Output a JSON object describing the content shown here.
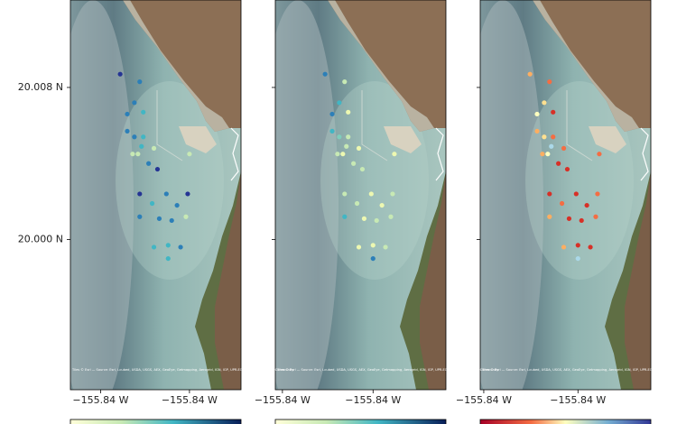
{
  "chart_data": [
    {
      "type": "scatter",
      "attribution": "Tiles © Esri — Source: Esri, i-cubed, USDA, USGS, AEX, GeoEye, Getmapping, Aerogrid, IGN, IGP, UPR-EGP, and the GIS User Community",
      "xlim": [
        -155.8467,
        -155.8371
      ],
      "ylim": [
        19.9921,
        20.0126
      ],
      "xticks": [
        {
          "value": -155.845,
          "label": "−155.84 W"
        },
        {
          "value": -155.84,
          "label": "−155.84 W"
        }
      ],
      "yticks": [
        {
          "value": 20.008,
          "label": "20.008 N"
        },
        {
          "value": 20.0,
          "label": "20.000 N"
        }
      ],
      "x": [
        -155.8439,
        -155.8428,
        -155.8431,
        -155.8435,
        -155.8426,
        -155.8435,
        -155.8431,
        -155.8426,
        -155.8427,
        -155.842,
        -155.8432,
        -155.8429,
        -155.8423,
        -155.8418,
        -155.84,
        -155.8428,
        -155.8413,
        -155.8401,
        -155.8421,
        -155.8407,
        -155.8428,
        -155.8417,
        -155.8402,
        -155.841,
        -155.842,
        -155.8412,
        -155.8405,
        -155.8412
      ],
      "y": [
        20.0087,
        20.0083,
        20.0072,
        20.0066,
        20.0067,
        20.0057,
        20.0054,
        20.0054,
        20.0049,
        20.0048,
        20.0045,
        20.0045,
        20.004,
        20.0037,
        20.0045,
        20.0024,
        20.0024,
        20.0024,
        20.0019,
        20.0018,
        20.0012,
        20.0011,
        20.0012,
        20.001,
        19.9996,
        19.9997,
        19.9996,
        19.999
      ],
      "colors": [
        "#253494",
        "#2c7fb8",
        "#2c7fb8",
        "#2c7fb8",
        "#41b6c4",
        "#2c7fb8",
        "#2c7fb8",
        "#41b6c4",
        "#41b6c4",
        "#c7e9b4",
        "#c7e9b4",
        "#c7e9b4",
        "#2c7fb8",
        "#253494",
        "#c7e9b4",
        "#253494",
        "#2c7fb8",
        "#253494",
        "#41b6c4",
        "#2c7fb8",
        "#2c7fb8",
        "#2c7fb8",
        "#c7e9b4",
        "#2c7fb8",
        "#41b6c4",
        "#41b6c4",
        "#2c7fb8",
        "#41b6c4"
      ]
    },
    {
      "type": "scatter",
      "attribution": "Tiles © Esri — Source: Esri, i-cubed, USDA, USGS, AEX, GeoEye, Getmapping, Aerogrid, IGN, IGP, UPR-EGP, and the GIS User Community",
      "xlim": [
        -155.8467,
        -155.8371
      ],
      "ylim": [
        19.9921,
        20.0126
      ],
      "xticks": [
        {
          "value": -155.8463,
          "label": "−155.84 W"
        },
        {
          "value": -155.8412,
          "label": "−155.84 W"
        }
      ],
      "x": [
        -155.8439,
        -155.8428,
        -155.8431,
        -155.8435,
        -155.8426,
        -155.8435,
        -155.8431,
        -155.8426,
        -155.8427,
        -155.842,
        -155.8432,
        -155.8429,
        -155.8423,
        -155.8418,
        -155.84,
        -155.8428,
        -155.8413,
        -155.8401,
        -155.8421,
        -155.8407,
        -155.8428,
        -155.8417,
        -155.8402,
        -155.841,
        -155.842,
        -155.8412,
        -155.8405,
        -155.8412
      ],
      "y": [
        20.0087,
        20.0083,
        20.0072,
        20.0066,
        20.0067,
        20.0057,
        20.0054,
        20.0054,
        20.0049,
        20.0048,
        20.0045,
        20.0045,
        20.004,
        20.0037,
        20.0045,
        20.0024,
        20.0024,
        20.0024,
        20.0019,
        20.0018,
        20.0012,
        20.0011,
        20.0012,
        20.001,
        19.9996,
        19.9997,
        19.9996,
        19.999
      ],
      "colors": [
        "#2c7fb8",
        "#c7e9b4",
        "#41b6c4",
        "#2c7fb8",
        "#edf8b1",
        "#41b6c4",
        "#7fcdbb",
        "#c7e9b4",
        "#c7e9b4",
        "#edf8b1",
        "#c7e9b4",
        "#edf8b1",
        "#c7e9b4",
        "#c7e9b4",
        "#edf8b1",
        "#c7e9b4",
        "#edf8b1",
        "#c7e9b4",
        "#c7e9b4",
        "#edf8b1",
        "#41b6c4",
        "#edf8b1",
        "#c7e9b4",
        "#c7e9b4",
        "#edf8b1",
        "#edf8b1",
        "#c7e9b4",
        "#2c7fb8"
      ]
    },
    {
      "type": "scatter",
      "attribution": "Tiles © Esri — Source: Esri, i-cubed, USDA, USGS, AEX, GeoEye, Getmapping, Aerogrid, IGN, IGP, UPR-EGP, and the GIS User Community",
      "xlim": [
        -155.8467,
        -155.8371
      ],
      "ylim": [
        19.9921,
        20.0126
      ],
      "xticks": [
        {
          "value": -155.8465,
          "label": "−155.84 W"
        },
        {
          "value": -155.8412,
          "label": "−155.84 W"
        }
      ],
      "x": [
        -155.8439,
        -155.8428,
        -155.8431,
        -155.8435,
        -155.8426,
        -155.8435,
        -155.8431,
        -155.8426,
        -155.8427,
        -155.842,
        -155.8432,
        -155.8429,
        -155.8423,
        -155.8418,
        -155.84,
        -155.8428,
        -155.8413,
        -155.8401,
        -155.8421,
        -155.8407,
        -155.8428,
        -155.8417,
        -155.8402,
        -155.841,
        -155.842,
        -155.8412,
        -155.8405,
        -155.8412
      ],
      "y": [
        20.0087,
        20.0083,
        20.0072,
        20.0066,
        20.0067,
        20.0057,
        20.0054,
        20.0054,
        20.0049,
        20.0048,
        20.0045,
        20.0045,
        20.004,
        20.0037,
        20.0045,
        20.0024,
        20.0024,
        20.0024,
        20.0019,
        20.0018,
        20.0012,
        20.0011,
        20.0012,
        20.001,
        19.9996,
        19.9997,
        19.9996,
        19.999
      ],
      "colors": [
        "#fdae61",
        "#f46d43",
        "#fee090",
        "#ffffbf",
        "#d73027",
        "#fdae61",
        "#fee090",
        "#f46d43",
        "#abd9e9",
        "#f46d43",
        "#fdae61",
        "#ffffbf",
        "#d73027",
        "#d73027",
        "#f46d43",
        "#d73027",
        "#d73027",
        "#f46d43",
        "#f46d43",
        "#d73027",
        "#fdae61",
        "#d73027",
        "#f46d43",
        "#d73027",
        "#fdae61",
        "#d73027",
        "#d73027",
        "#abd9e9"
      ]
    }
  ]
}
